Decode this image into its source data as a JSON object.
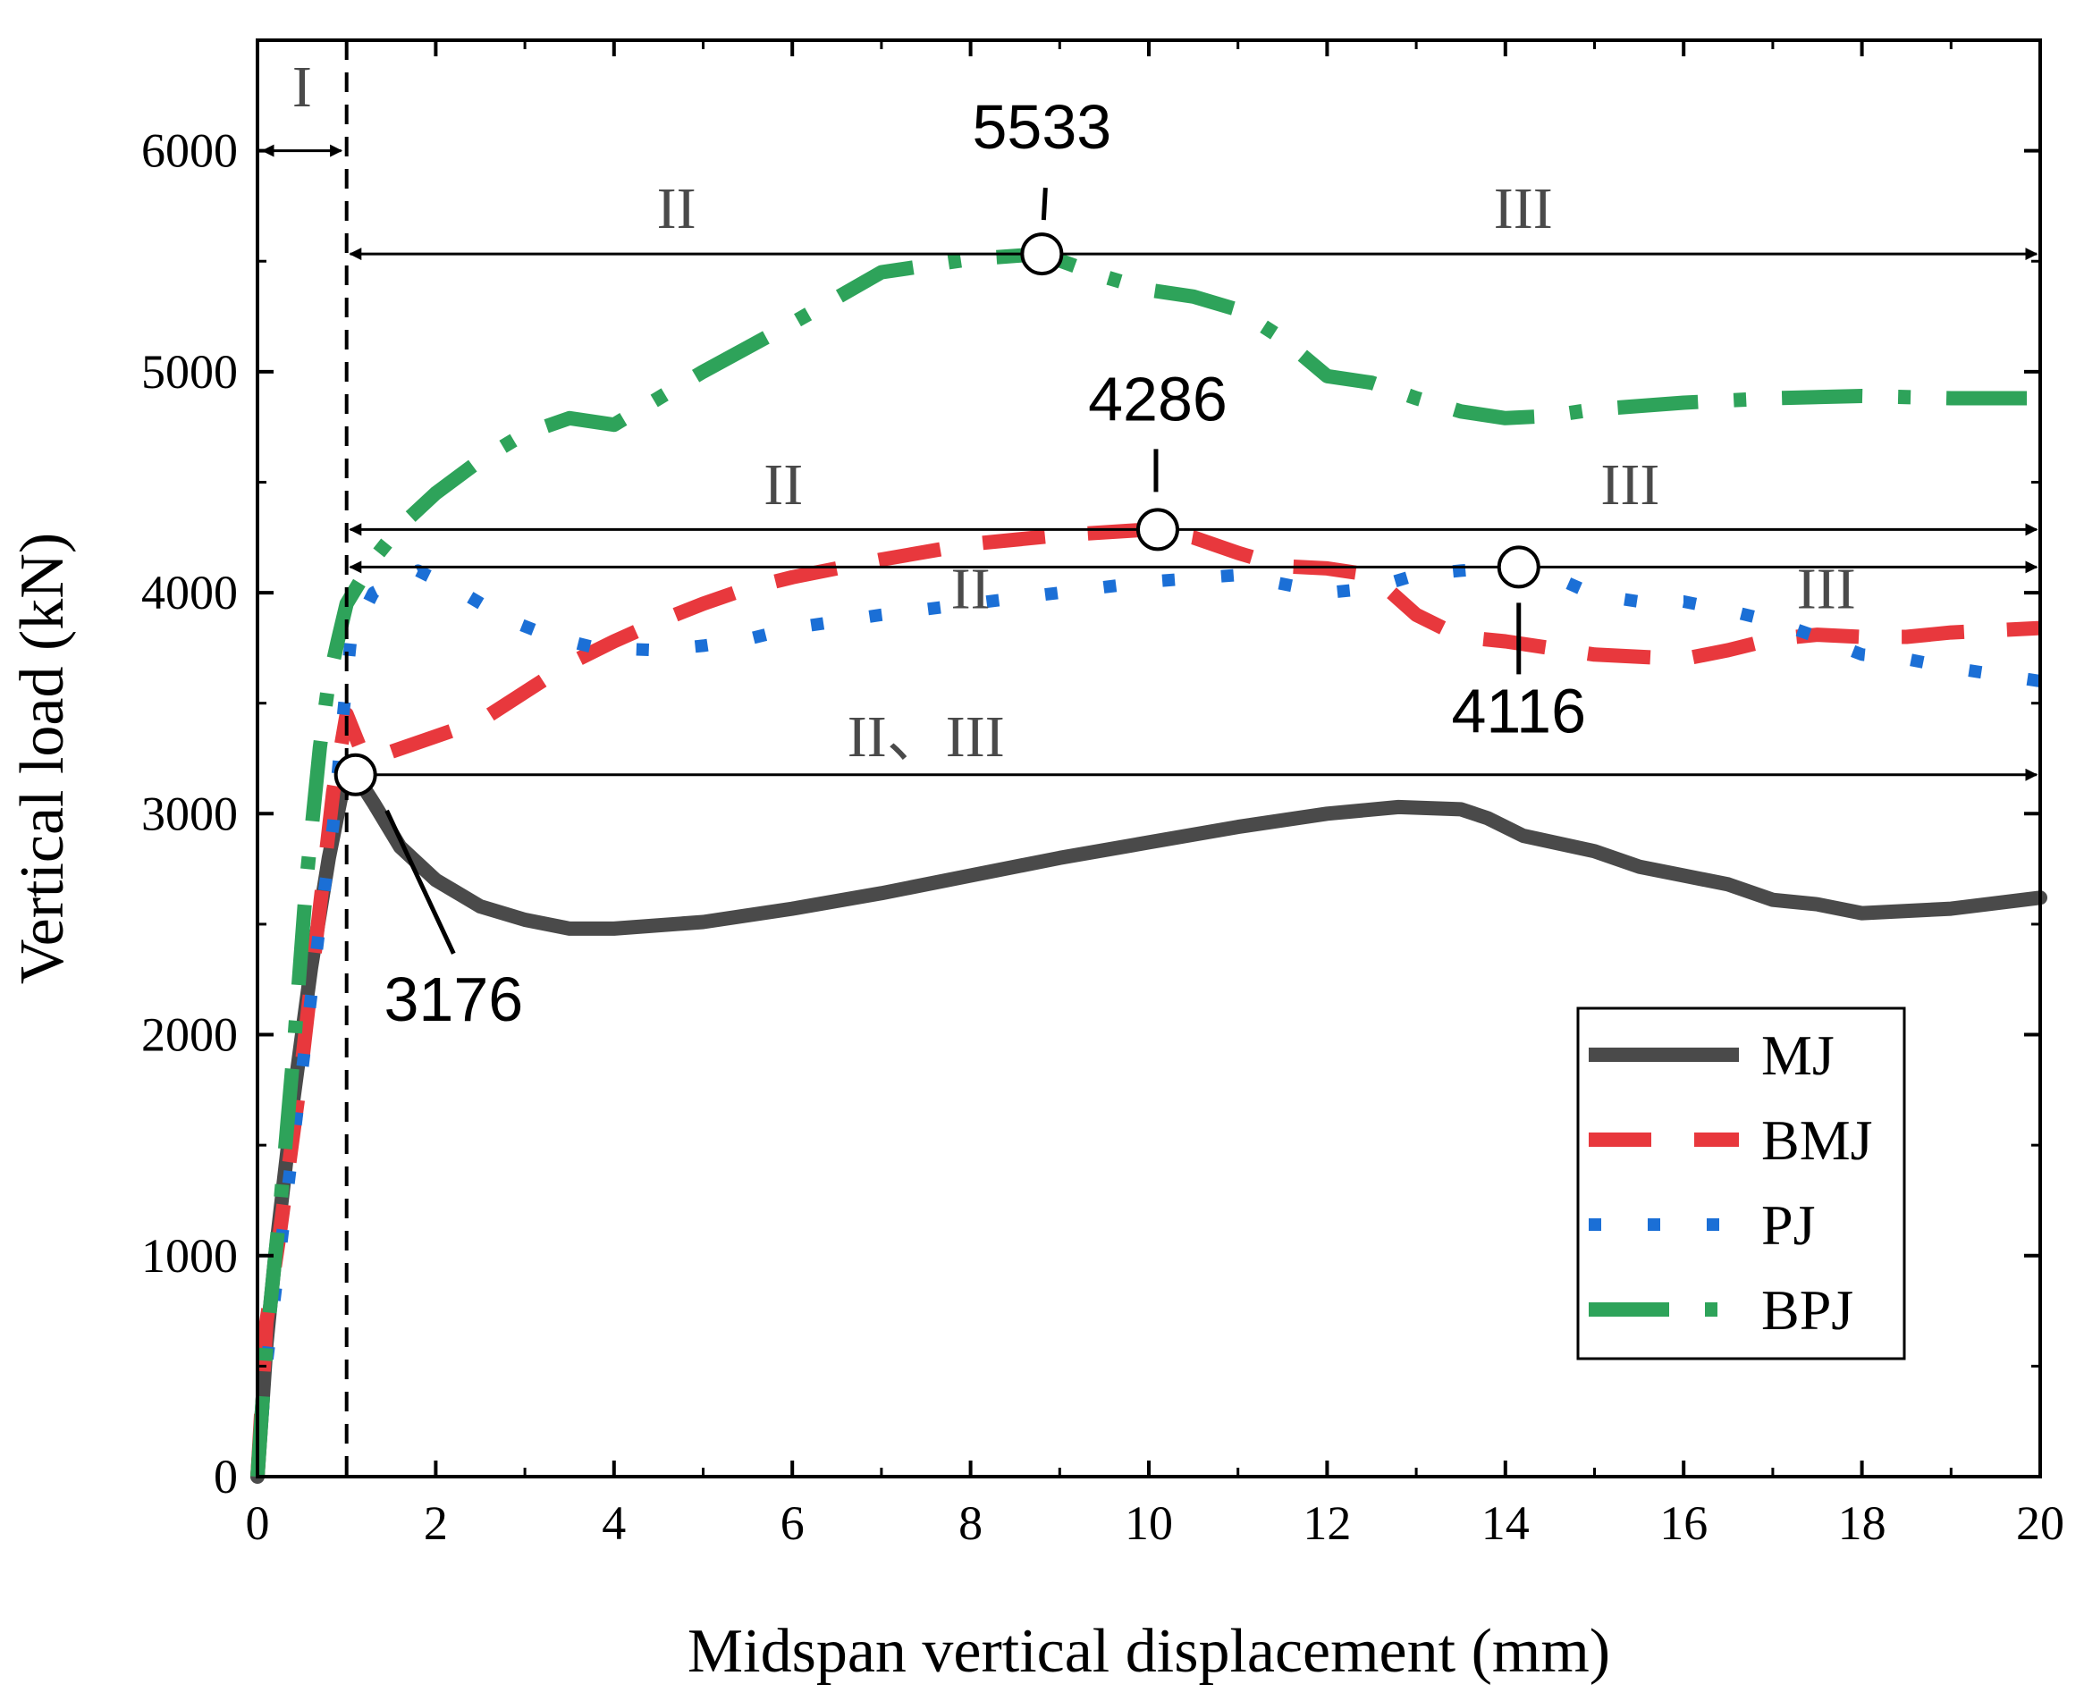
{
  "chart_data": {
    "type": "line",
    "xlabel": "Midspan vertical displacement (mm)",
    "ylabel": "Vertical load (kN)",
    "xlim": [
      0,
      20
    ],
    "ylim": [
      0,
      6500
    ],
    "x_ticks": [
      0,
      2,
      4,
      6,
      8,
      10,
      12,
      14,
      16,
      18,
      20
    ],
    "y_ticks": [
      0,
      1000,
      2000,
      3000,
      4000,
      5000,
      6000
    ],
    "grid": false,
    "legend_position": "bottom-right",
    "series": [
      {
        "name": "MJ",
        "color": "#4a4a4a",
        "style": "solid",
        "points": [
          [
            0,
            0
          ],
          [
            0.1,
            600
          ],
          [
            0.2,
            1000
          ],
          [
            0.4,
            1700
          ],
          [
            0.6,
            2300
          ],
          [
            0.8,
            2800
          ],
          [
            0.95,
            3100
          ],
          [
            1.1,
            3176
          ],
          [
            1.3,
            3050
          ],
          [
            1.6,
            2850
          ],
          [
            2.0,
            2700
          ],
          [
            2.5,
            2580
          ],
          [
            3.0,
            2520
          ],
          [
            3.5,
            2480
          ],
          [
            4.0,
            2480
          ],
          [
            5.0,
            2510
          ],
          [
            6.0,
            2570
          ],
          [
            7.0,
            2640
          ],
          [
            8.0,
            2720
          ],
          [
            9.0,
            2800
          ],
          [
            10.0,
            2870
          ],
          [
            11.0,
            2940
          ],
          [
            12.0,
            3000
          ],
          [
            12.8,
            3030
          ],
          [
            13.5,
            3020
          ],
          [
            13.8,
            2980
          ],
          [
            14.2,
            2900
          ],
          [
            15.0,
            2830
          ],
          [
            15.5,
            2760
          ],
          [
            16.0,
            2720
          ],
          [
            16.5,
            2680
          ],
          [
            17.0,
            2610
          ],
          [
            17.5,
            2590
          ],
          [
            18.0,
            2550
          ],
          [
            19.0,
            2570
          ],
          [
            20.0,
            2620
          ]
        ]
      },
      {
        "name": "BMJ",
        "color": "#e8383d",
        "style": "dash",
        "points": [
          [
            0,
            0
          ],
          [
            0.1,
            700
          ],
          [
            0.25,
            1100
          ],
          [
            0.45,
            1700
          ],
          [
            0.65,
            2400
          ],
          [
            0.85,
            3100
          ],
          [
            1.0,
            3450
          ],
          [
            1.2,
            3250
          ],
          [
            1.5,
            3280
          ],
          [
            2.0,
            3350
          ],
          [
            2.5,
            3420
          ],
          [
            3.0,
            3550
          ],
          [
            3.5,
            3680
          ],
          [
            4.0,
            3780
          ],
          [
            4.5,
            3870
          ],
          [
            5.0,
            3950
          ],
          [
            5.5,
            4020
          ],
          [
            6.0,
            4070
          ],
          [
            7.0,
            4150
          ],
          [
            8.0,
            4220
          ],
          [
            9.0,
            4260
          ],
          [
            10.0,
            4286
          ],
          [
            10.5,
            4250
          ],
          [
            11.0,
            4180
          ],
          [
            11.5,
            4120
          ],
          [
            12.0,
            4110
          ],
          [
            12.5,
            4080
          ],
          [
            13.0,
            3900
          ],
          [
            13.5,
            3800
          ],
          [
            14.0,
            3780
          ],
          [
            15.0,
            3720
          ],
          [
            16.0,
            3700
          ],
          [
            16.5,
            3740
          ],
          [
            17.0,
            3790
          ],
          [
            17.5,
            3810
          ],
          [
            18.0,
            3800
          ],
          [
            18.5,
            3800
          ],
          [
            19.0,
            3820
          ],
          [
            20.0,
            3840
          ]
        ]
      },
      {
        "name": "PJ",
        "color": "#1b6fd6",
        "style": "dot",
        "points": [
          [
            0,
            0
          ],
          [
            0.1,
            500
          ],
          [
            0.25,
            1000
          ],
          [
            0.4,
            1500
          ],
          [
            0.55,
            2000
          ],
          [
            0.7,
            2500
          ],
          [
            0.85,
            2950
          ],
          [
            0.95,
            3400
          ],
          [
            1.05,
            3800
          ],
          [
            1.3,
            4000
          ],
          [
            1.8,
            4100
          ],
          [
            2.3,
            4000
          ],
          [
            2.8,
            3880
          ],
          [
            3.3,
            3800
          ],
          [
            3.8,
            3750
          ],
          [
            4.5,
            3740
          ],
          [
            5.0,
            3760
          ],
          [
            5.5,
            3790
          ],
          [
            6.0,
            3840
          ],
          [
            7.0,
            3900
          ],
          [
            8.0,
            3950
          ],
          [
            9.0,
            4000
          ],
          [
            10.0,
            4050
          ],
          [
            11.0,
            4080
          ],
          [
            12.0,
            4000
          ],
          [
            12.5,
            4020
          ],
          [
            13.0,
            4080
          ],
          [
            13.5,
            4100
          ],
          [
            14.0,
            4116
          ],
          [
            14.5,
            4080
          ],
          [
            15.0,
            3990
          ],
          [
            15.5,
            3960
          ],
          [
            16.0,
            3960
          ],
          [
            16.5,
            3920
          ],
          [
            17.0,
            3870
          ],
          [
            17.5,
            3800
          ],
          [
            18.0,
            3720
          ],
          [
            18.5,
            3700
          ],
          [
            19.0,
            3660
          ],
          [
            20.0,
            3600
          ]
        ]
      },
      {
        "name": "BPJ",
        "color": "#2ea35a",
        "style": "dashdot",
        "points": [
          [
            0,
            0
          ],
          [
            0.1,
            600
          ],
          [
            0.25,
            1200
          ],
          [
            0.4,
            1900
          ],
          [
            0.55,
            2700
          ],
          [
            0.7,
            3300
          ],
          [
            0.8,
            3600
          ],
          [
            0.9,
            3780
          ],
          [
            1.0,
            3950
          ],
          [
            1.3,
            4150
          ],
          [
            1.6,
            4300
          ],
          [
            2.0,
            4450
          ],
          [
            2.5,
            4600
          ],
          [
            3.0,
            4720
          ],
          [
            3.5,
            4790
          ],
          [
            4.0,
            4760
          ],
          [
            5.0,
            5000
          ],
          [
            6.0,
            5220
          ],
          [
            7.0,
            5450
          ],
          [
            8.0,
            5510
          ],
          [
            8.8,
            5533
          ],
          [
            9.5,
            5430
          ],
          [
            10.0,
            5370
          ],
          [
            10.5,
            5340
          ],
          [
            11.0,
            5280
          ],
          [
            11.5,
            5150
          ],
          [
            12.0,
            4980
          ],
          [
            12.5,
            4950
          ],
          [
            13.0,
            4880
          ],
          [
            13.5,
            4820
          ],
          [
            14.0,
            4790
          ],
          [
            14.5,
            4800
          ],
          [
            15.0,
            4830
          ],
          [
            16.0,
            4860
          ],
          [
            17.0,
            4880
          ],
          [
            18.0,
            4890
          ],
          [
            19.0,
            4880
          ],
          [
            20.0,
            4880
          ]
        ]
      }
    ],
    "annotations": {
      "peaks": [
        {
          "text": "5533",
          "series": "BPJ",
          "x": 8.8,
          "y": 5533
        },
        {
          "text": "4286",
          "series": "BMJ",
          "x": 10.1,
          "y": 4286
        },
        {
          "text": "4116",
          "series": "PJ",
          "x": 14.15,
          "y": 4116
        },
        {
          "text": "3176",
          "series": "MJ",
          "x": 1.1,
          "y": 3176
        }
      ],
      "stage_boundary_x": 1.0,
      "stage_labels": [
        {
          "text": "I",
          "x": 0.5,
          "y": 6200
        },
        {
          "text": "II",
          "x": 4.7,
          "y": 5650
        },
        {
          "text": "III",
          "x": 14.2,
          "y": 5650
        },
        {
          "text": "II",
          "x": 5.9,
          "y": 4400
        },
        {
          "text": "III",
          "x": 15.4,
          "y": 4400
        },
        {
          "text": "II",
          "x": 8.0,
          "y": 3930
        },
        {
          "text": "III",
          "x": 17.6,
          "y": 3930
        },
        {
          "text": "II、III",
          "x": 7.5,
          "y": 3260
        }
      ]
    }
  }
}
